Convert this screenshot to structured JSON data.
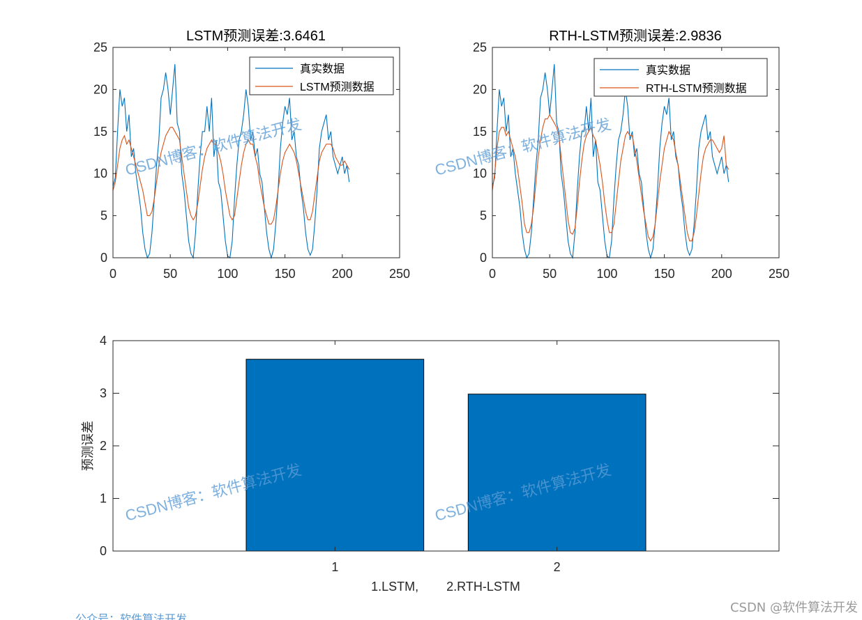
{
  "chart_data": [
    {
      "type": "line",
      "title": "LSTM预测误差:3.6461",
      "xlim": [
        0,
        250
      ],
      "ylim": [
        0,
        25
      ],
      "xticks": [
        "0",
        "50",
        "100",
        "150",
        "200",
        "250"
      ],
      "yticks": [
        "0",
        "5",
        "10",
        "15",
        "20",
        "25"
      ],
      "legend_position": "top-right",
      "series": [
        {
          "name": "真实数据",
          "color": "#0072BD",
          "x": [
            0,
            2,
            4,
            6,
            8,
            10,
            12,
            14,
            16,
            18,
            20,
            22,
            24,
            26,
            28,
            30,
            32,
            34,
            36,
            38,
            40,
            42,
            44,
            46,
            48,
            50,
            52,
            54,
            56,
            58,
            60,
            62,
            64,
            66,
            68,
            70,
            72,
            74,
            76,
            78,
            80,
            82,
            84,
            86,
            88,
            90,
            92,
            94,
            96,
            98,
            100,
            102,
            104,
            106,
            108,
            110,
            112,
            114,
            116,
            118,
            120,
            122,
            124,
            126,
            128,
            130,
            132,
            134,
            136,
            138,
            140,
            142,
            144,
            146,
            148,
            150,
            152,
            154,
            156,
            158,
            160,
            162,
            164,
            166,
            168,
            170,
            172,
            174,
            176,
            178,
            180,
            182,
            184,
            186,
            188,
            190,
            192,
            194,
            196,
            198,
            200,
            202,
            204,
            206
          ],
          "y": [
            8.5,
            9.5,
            15,
            20,
            18,
            19,
            15,
            17,
            12,
            13,
            10,
            8,
            6,
            3,
            1,
            0,
            0.5,
            3,
            7,
            11,
            14,
            19,
            20,
            22,
            20,
            17,
            20,
            23,
            16,
            15,
            10,
            8,
            5,
            2,
            0.5,
            0,
            3,
            8,
            12,
            15,
            15,
            18,
            15,
            19,
            12,
            14,
            9,
            8,
            5,
            2,
            0.2,
            0,
            2,
            7,
            11,
            14,
            15,
            17,
            20,
            18,
            14,
            15,
            12,
            13,
            10,
            9,
            6,
            3,
            1,
            0,
            1,
            4,
            8,
            13,
            16,
            18,
            17,
            19,
            14,
            15,
            12,
            11,
            8,
            6,
            3,
            1,
            0.3,
            1,
            4,
            8,
            13,
            15,
            16,
            17,
            14,
            15,
            12,
            11,
            10,
            11,
            12,
            10,
            11,
            9
          ]
        },
        {
          "name": "LSTM预测数据",
          "color": "#D95319",
          "x": [
            0,
            2,
            4,
            6,
            8,
            10,
            12,
            14,
            16,
            18,
            20,
            22,
            24,
            26,
            28,
            30,
            32,
            34,
            36,
            38,
            40,
            42,
            44,
            46,
            48,
            50,
            52,
            54,
            56,
            58,
            60,
            62,
            64,
            66,
            68,
            70,
            72,
            74,
            76,
            78,
            80,
            82,
            84,
            86,
            88,
            90,
            92,
            94,
            96,
            98,
            100,
            102,
            104,
            106,
            108,
            110,
            112,
            114,
            116,
            118,
            120,
            122,
            124,
            126,
            128,
            130,
            132,
            134,
            136,
            138,
            140,
            142,
            144,
            146,
            148,
            150,
            152,
            154,
            156,
            158,
            160,
            162,
            164,
            166,
            168,
            170,
            172,
            174,
            176,
            178,
            180,
            182,
            184,
            186,
            188,
            190,
            192,
            194,
            196,
            198,
            200,
            202,
            204,
            206
          ],
          "y": [
            8,
            9,
            11,
            13,
            14,
            14.5,
            13.5,
            14,
            13,
            12,
            11,
            10,
            9,
            8,
            6.5,
            5,
            5,
            5.5,
            7,
            9,
            11,
            12.5,
            13.5,
            14.5,
            15,
            15.5,
            15.5,
            15,
            14.5,
            14,
            12,
            10,
            8,
            6,
            5,
            4.5,
            5,
            6.5,
            8.5,
            10.5,
            12,
            13,
            13.5,
            14,
            13.5,
            13.5,
            12.5,
            11.5,
            10,
            8,
            6.5,
            5,
            4.5,
            5,
            7,
            9,
            11,
            12.5,
            13.5,
            14,
            13.5,
            13.5,
            12,
            11,
            9,
            7.5,
            6,
            5,
            4,
            4,
            4.5,
            6,
            8,
            10,
            11.5,
            12.5,
            13,
            13.5,
            13,
            12.5,
            11.5,
            10,
            8.5,
            7,
            5.5,
            4.5,
            4.5,
            5.5,
            7.5,
            9.5,
            11.5,
            12.5,
            13,
            13.5,
            13.5,
            13.5,
            13,
            12,
            11.5,
            11,
            11,
            11.5,
            11,
            10.5
          ]
        }
      ]
    },
    {
      "type": "line",
      "title": "RTH-LSTM预测误差:2.9836",
      "xlim": [
        0,
        250
      ],
      "ylim": [
        0,
        25
      ],
      "xticks": [
        "0",
        "50",
        "100",
        "150",
        "200",
        "250"
      ],
      "yticks": [
        "0",
        "5",
        "10",
        "15",
        "20",
        "25"
      ],
      "legend_position": "top-right",
      "series": [
        {
          "name": "真实数据",
          "color": "#0072BD",
          "x": [
            0,
            2,
            4,
            6,
            8,
            10,
            12,
            14,
            16,
            18,
            20,
            22,
            24,
            26,
            28,
            30,
            32,
            34,
            36,
            38,
            40,
            42,
            44,
            46,
            48,
            50,
            52,
            54,
            56,
            58,
            60,
            62,
            64,
            66,
            68,
            70,
            72,
            74,
            76,
            78,
            80,
            82,
            84,
            86,
            88,
            90,
            92,
            94,
            96,
            98,
            100,
            102,
            104,
            106,
            108,
            110,
            112,
            114,
            116,
            118,
            120,
            122,
            124,
            126,
            128,
            130,
            132,
            134,
            136,
            138,
            140,
            142,
            144,
            146,
            148,
            150,
            152,
            154,
            156,
            158,
            160,
            162,
            164,
            166,
            168,
            170,
            172,
            174,
            176,
            178,
            180,
            182,
            184,
            186,
            188,
            190,
            192,
            194,
            196,
            198,
            200,
            202,
            204,
            206
          ],
          "y": [
            8.5,
            9.5,
            15,
            20,
            18,
            19,
            15,
            17,
            12,
            13,
            10,
            8,
            6,
            3,
            1,
            0,
            0.5,
            3,
            7,
            11,
            14,
            19,
            20,
            22,
            20,
            17,
            20,
            23,
            16,
            15,
            10,
            8,
            5,
            2,
            0.5,
            0,
            3,
            8,
            12,
            15,
            15,
            18,
            15,
            19,
            12,
            14,
            9,
            8,
            5,
            2,
            0.2,
            0,
            2,
            7,
            11,
            14,
            15,
            17,
            20,
            18,
            14,
            15,
            12,
            13,
            10,
            9,
            6,
            3,
            1,
            0,
            1,
            4,
            8,
            13,
            16,
            18,
            17,
            19,
            14,
            15,
            12,
            11,
            8,
            6,
            3,
            1,
            0.3,
            1,
            4,
            8,
            13,
            15,
            16,
            17,
            14,
            15,
            12,
            11,
            10,
            11,
            12,
            10,
            11,
            9
          ]
        },
        {
          "name": "RTH-LSTM预测数据",
          "color": "#D95319",
          "x": [
            0,
            2,
            4,
            6,
            8,
            10,
            12,
            14,
            16,
            18,
            20,
            22,
            24,
            26,
            28,
            30,
            32,
            34,
            36,
            38,
            40,
            42,
            44,
            46,
            48,
            50,
            52,
            54,
            56,
            58,
            60,
            62,
            64,
            66,
            68,
            70,
            72,
            74,
            76,
            78,
            80,
            82,
            84,
            86,
            88,
            90,
            92,
            94,
            96,
            98,
            100,
            102,
            104,
            106,
            108,
            110,
            112,
            114,
            116,
            118,
            120,
            122,
            124,
            126,
            128,
            130,
            132,
            134,
            136,
            138,
            140,
            142,
            144,
            146,
            148,
            150,
            152,
            154,
            156,
            158,
            160,
            162,
            164,
            166,
            168,
            170,
            172,
            174,
            176,
            178,
            180,
            182,
            184,
            186,
            188,
            190,
            192,
            194,
            196,
            198,
            200,
            202,
            204,
            206
          ],
          "y": [
            8,
            10,
            13,
            15,
            15.5,
            15.5,
            14.5,
            15,
            14,
            13,
            12,
            10.5,
            8.5,
            6.5,
            4,
            3,
            3,
            4,
            6,
            9,
            12,
            14,
            15.5,
            16.5,
            16.5,
            17,
            16.5,
            16,
            15.5,
            14.5,
            12,
            9.5,
            7,
            4.5,
            3,
            2.8,
            3.5,
            6,
            9,
            11.5,
            13.5,
            14.5,
            15,
            15.5,
            14.5,
            14,
            12.5,
            11,
            9,
            6.5,
            4.5,
            3,
            3,
            4,
            6.5,
            9,
            11.5,
            13,
            14.5,
            15,
            14.5,
            14.5,
            13,
            11.5,
            9.5,
            7.5,
            5.5,
            4,
            2.5,
            2,
            2.5,
            4,
            6.5,
            9,
            11,
            13,
            14,
            15,
            14.5,
            14,
            12.5,
            11,
            9,
            7,
            5,
            3,
            2,
            2,
            3,
            5,
            7.5,
            10,
            12,
            13,
            13.5,
            14,
            14,
            13.5,
            13,
            12.5,
            13,
            14.5,
            11,
            10.5
          ]
        }
      ]
    },
    {
      "type": "bar",
      "categories": [
        "1",
        "2"
      ],
      "values": [
        3.6461,
        2.9836
      ],
      "ylim": [
        0,
        4
      ],
      "xlim": [
        0,
        3
      ],
      "yticks": [
        "0",
        "1",
        "2",
        "3",
        "4"
      ],
      "ylabel": "预测误差",
      "xlabel": "1.LSTM,        2.RTH-LSTM",
      "color": "#0072BD"
    }
  ],
  "watermark": "CSDN博客：软件算法开发",
  "corner_watermark": "CSDN @软件算法开发",
  "footer_text": "公众号：软件算法开发"
}
